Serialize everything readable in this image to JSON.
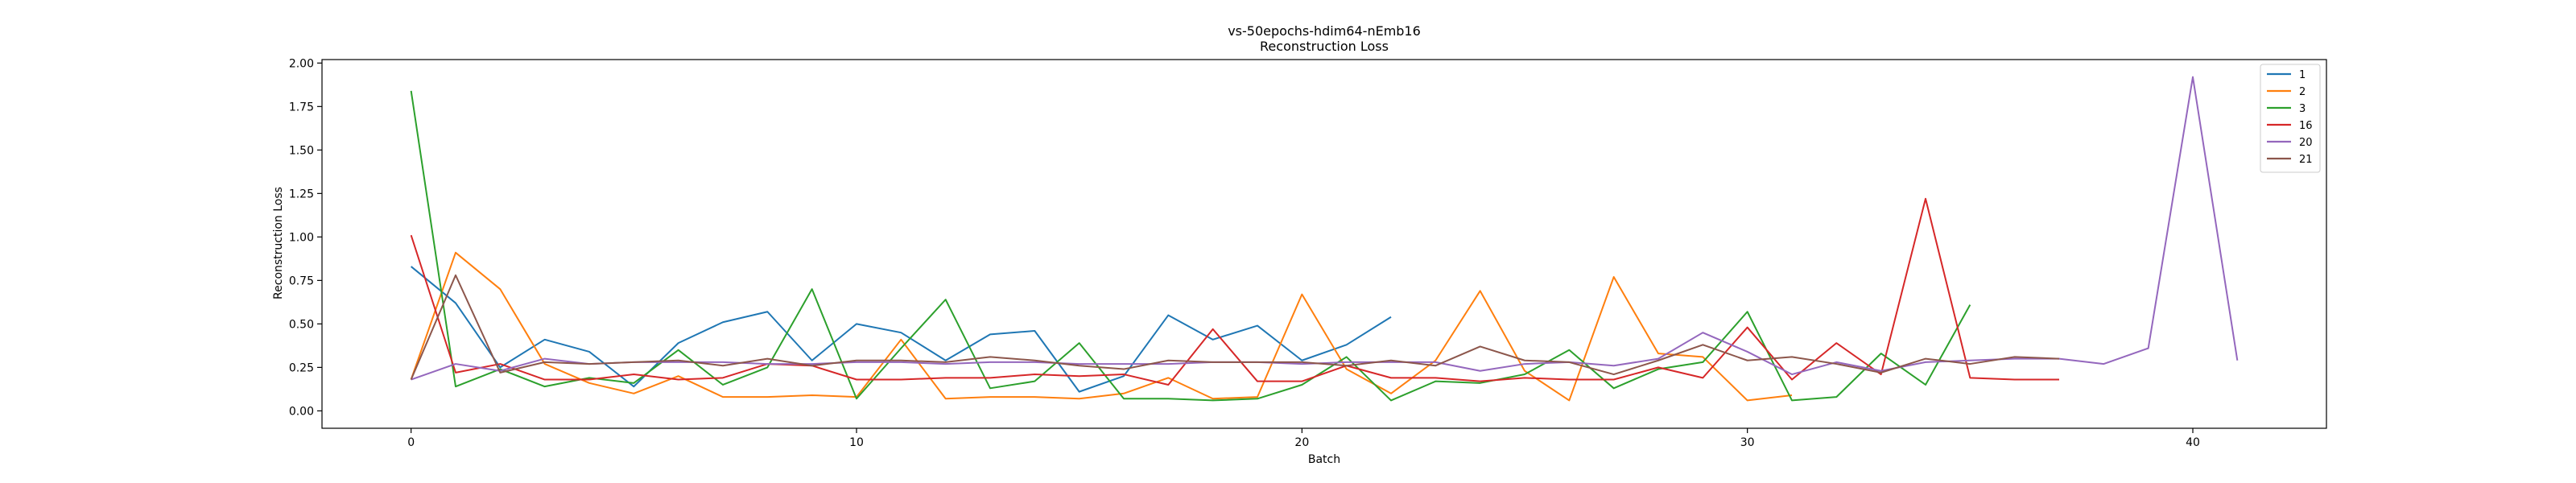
{
  "chart_data": {
    "type": "line",
    "title": "vs-50epochs-hdim64-nEmb16",
    "subtitle": "Reconstruction Loss",
    "xlabel": "Batch",
    "ylabel": "Reconstruction Loss",
    "xlim": [
      -2,
      43
    ],
    "ylim": [
      -0.1,
      2.02
    ],
    "xticks": [
      0,
      10,
      20,
      30,
      40
    ],
    "yticks": [
      0.0,
      0.25,
      0.5,
      0.75,
      1.0,
      1.25,
      1.5,
      1.75,
      2.0
    ],
    "ytick_labels": [
      "0.00",
      "0.25",
      "0.50",
      "0.75",
      "1.00",
      "1.25",
      "1.50",
      "1.75",
      "2.00"
    ],
    "grid": false,
    "legend_placement": "top-right",
    "series": [
      {
        "name": "1",
        "color": "#1f77b4",
        "values": [
          0.83,
          0.62,
          0.25,
          0.41,
          0.34,
          0.14,
          0.39,
          0.51,
          0.57,
          0.29,
          0.5,
          0.45,
          0.29,
          0.44,
          0.46,
          0.11,
          0.2,
          0.55,
          0.41,
          0.49,
          0.29,
          0.38,
          0.54
        ]
      },
      {
        "name": "2",
        "color": "#ff7f0e",
        "values": [
          0.18,
          0.91,
          0.7,
          0.27,
          0.16,
          0.1,
          0.2,
          0.08,
          0.08,
          0.09,
          0.08,
          0.41,
          0.07,
          0.08,
          0.08,
          0.07,
          0.1,
          0.19,
          0.07,
          0.08,
          0.67,
          0.24,
          0.1,
          0.29,
          0.69,
          0.23,
          0.06,
          0.77,
          0.33,
          0.31,
          0.06,
          0.09
        ]
      },
      {
        "name": "3",
        "color": "#2ca02c",
        "values": [
          1.84,
          0.14,
          0.24,
          0.14,
          0.19,
          0.16,
          0.35,
          0.15,
          0.25,
          0.7,
          0.07,
          0.36,
          0.64,
          0.13,
          0.17,
          0.39,
          0.07,
          0.07,
          0.06,
          0.07,
          0.15,
          0.31,
          0.06,
          0.17,
          0.16,
          0.21,
          0.35,
          0.13,
          0.24,
          0.28,
          0.57,
          0.06,
          0.08,
          0.33,
          0.15,
          0.61
        ]
      },
      {
        "name": "16",
        "color": "#d62728",
        "values": [
          1.01,
          0.22,
          0.27,
          0.18,
          0.18,
          0.21,
          0.18,
          0.19,
          0.27,
          0.26,
          0.18,
          0.18,
          0.19,
          0.19,
          0.21,
          0.2,
          0.21,
          0.15,
          0.47,
          0.17,
          0.17,
          0.26,
          0.19,
          0.19,
          0.17,
          0.19,
          0.18,
          0.18,
          0.25,
          0.19,
          0.48,
          0.18,
          0.39,
          0.21,
          1.22,
          0.19,
          0.18,
          0.18
        ]
      },
      {
        "name": "20",
        "color": "#9467bd",
        "values": [
          0.18,
          0.27,
          0.23,
          0.3,
          0.27,
          0.28,
          0.28,
          0.28,
          0.27,
          0.27,
          0.28,
          0.28,
          0.27,
          0.28,
          0.28,
          0.27,
          0.27,
          0.27,
          0.28,
          0.28,
          0.27,
          0.28,
          0.28,
          0.28,
          0.23,
          0.27,
          0.28,
          0.26,
          0.3,
          0.45,
          0.34,
          0.21,
          0.28,
          0.23,
          0.28,
          0.29,
          0.3,
          0.3,
          0.27,
          0.36,
          1.92,
          0.29
        ]
      },
      {
        "name": "21",
        "color": "#8c564b",
        "values": [
          0.18,
          0.78,
          0.22,
          0.28,
          0.27,
          0.28,
          0.29,
          0.26,
          0.3,
          0.26,
          0.29,
          0.29,
          0.28,
          0.31,
          0.29,
          0.26,
          0.24,
          0.29,
          0.28,
          0.28,
          0.28,
          0.26,
          0.29,
          0.26,
          0.37,
          0.29,
          0.28,
          0.21,
          0.29,
          0.38,
          0.29,
          0.31,
          0.27,
          0.22,
          0.3,
          0.27,
          0.31,
          0.3
        ]
      }
    ]
  }
}
